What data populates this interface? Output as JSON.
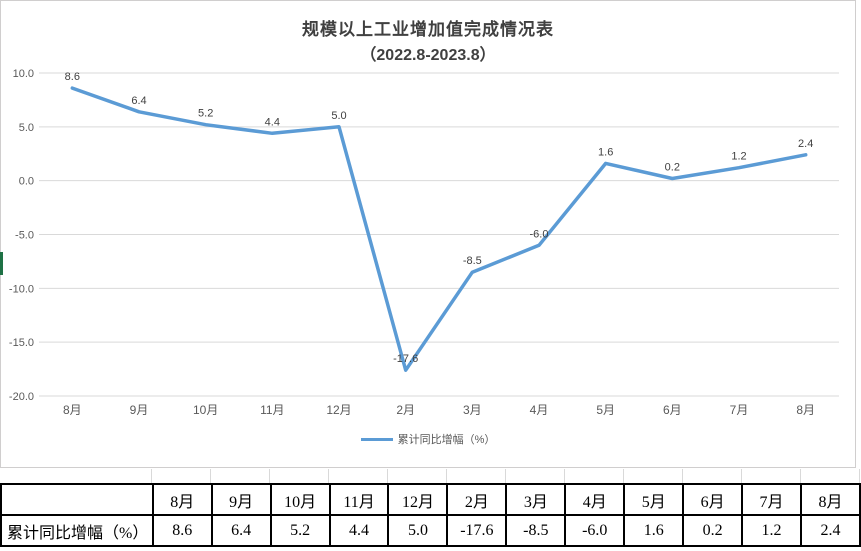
{
  "chart_data": {
    "type": "line",
    "title": "规模以上工业增加值完成情况表",
    "subtitle": "（2022.8-2023.8）",
    "categories": [
      "8月",
      "9月",
      "10月",
      "11月",
      "12月",
      "2月",
      "3月",
      "4月",
      "5月",
      "6月",
      "7月",
      "8月"
    ],
    "values": [
      8.6,
      6.4,
      5.2,
      4.4,
      5.0,
      -17.6,
      -8.5,
      -6.0,
      1.6,
      0.2,
      1.2,
      2.4
    ],
    "data_labels": [
      "8.6",
      "6.4",
      "5.2",
      "4.4",
      "5.0",
      "-17.6",
      "-8.5",
      "-6.0",
      "1.6",
      "0.2",
      "1.2",
      "2.4"
    ],
    "y_ticks": [
      "10.0",
      "5.0",
      "0.0",
      "-5.0",
      "-10.0",
      "-15.0",
      "-20.0"
    ],
    "ylim": [
      -20,
      10
    ],
    "xlabel": "",
    "ylabel": "",
    "grid": "horizontal",
    "legend": {
      "label": "累计同比增幅（%）",
      "position": "bottom"
    },
    "colors": {
      "line": "#5B9BD5",
      "data_label": "#404040",
      "axis_text": "#595959",
      "gridline": "#D9D9D9"
    }
  },
  "table": {
    "row_label": "累计同比增幅（%）",
    "months": [
      "8月",
      "9月",
      "10月",
      "11月",
      "12月",
      "2月",
      "3月",
      "4月",
      "5月",
      "6月",
      "7月",
      "8月"
    ],
    "values": [
      "8.6",
      "6.4",
      "5.2",
      "4.4",
      "5.0",
      "-17.6",
      "-8.5",
      "-6.0",
      "1.6",
      "0.2",
      "1.2",
      "2.4"
    ]
  },
  "decor": {
    "sheet_edge_color": "#1E7145",
    "chart_border_color": "#D0CECE"
  }
}
